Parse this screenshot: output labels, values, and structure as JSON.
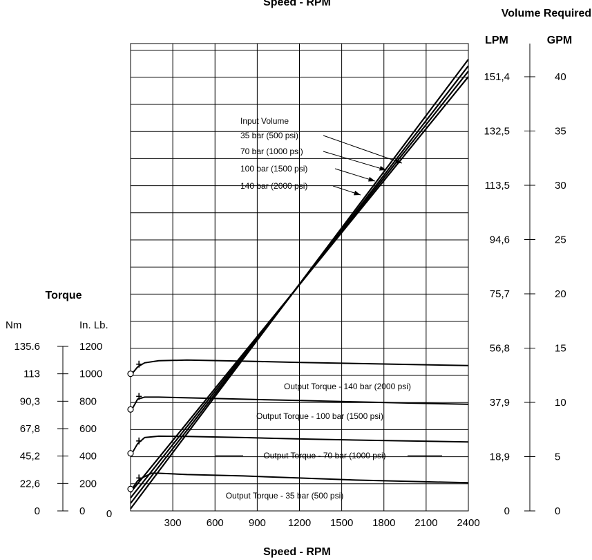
{
  "chart_data": {
    "type": "line",
    "title": "Speed - RPM",
    "xlabel": "Speed - RPM",
    "xlim": [
      0,
      2400
    ],
    "x_ticks": [
      "300",
      "600",
      "900",
      "1200",
      "1500",
      "1800",
      "2100",
      "2400"
    ],
    "x_zero_label": "0",
    "left_axis": {
      "title": "Torque",
      "nm_label": "Nm",
      "inlb_label": "In. Lb.",
      "nm_ticks": [
        "0",
        "22,6",
        "45,2",
        "67,8",
        "90,3",
        "113",
        "135.6"
      ],
      "inlb_ticks": [
        "0",
        "200",
        "400",
        "600",
        "800",
        "1000",
        "1200"
      ],
      "ylim_inlb": [
        0,
        1200
      ]
    },
    "right_axis": {
      "title": "Volume Required",
      "lpm_label": "LPM",
      "gpm_label": "GPM",
      "lpm_ticks": [
        "0",
        "18,9",
        "37,9",
        "56,8",
        "75,7",
        "94,6",
        "113,5",
        "132,5",
        "151,4"
      ],
      "gpm_ticks": [
        "0",
        "5",
        "10",
        "15",
        "20",
        "25",
        "30",
        "35",
        "40"
      ],
      "ylim_gpm": [
        0,
        40
      ]
    },
    "volume_series_title": "Input Volume",
    "volume_series": [
      {
        "name": "35 bar (500 psi)",
        "x": [
          0,
          2400
        ],
        "y_gpm": [
          0.2,
          41.6
        ]
      },
      {
        "name": "70 bar (1000 psi)",
        "x": [
          0,
          2400
        ],
        "y_gpm": [
          0.7,
          41.0
        ]
      },
      {
        "name": "100 bar (1500 psi)",
        "x": [
          0,
          2400
        ],
        "y_gpm": [
          1.2,
          40.5
        ]
      },
      {
        "name": "140 bar (2000 psi)",
        "x": [
          0,
          2400
        ],
        "y_gpm": [
          1.7,
          40.0
        ]
      }
    ],
    "torque_series": [
      {
        "name": "Output Torque - 140 bar (2000 psi)",
        "start_inlb": 1000,
        "x": [
          50,
          100,
          200,
          400,
          800,
          1200,
          1600,
          2000,
          2400
        ],
        "y_inlb": [
          1050,
          1080,
          1095,
          1100,
          1092,
          1083,
          1075,
          1068,
          1060
        ]
      },
      {
        "name": "Output Torque - 100 bar (1500 psi)",
        "start_inlb": 740,
        "x": [
          50,
          100,
          200,
          400,
          800,
          1200,
          1600,
          2000,
          2400
        ],
        "y_inlb": [
          815,
          830,
          830,
          825,
          815,
          805,
          795,
          786,
          778
        ]
      },
      {
        "name": "Output Torque - 70 bar (1000 psi)",
        "start_inlb": 420,
        "x": [
          50,
          100,
          200,
          400,
          800,
          1200,
          1600,
          2000,
          2400
        ],
        "y_inlb": [
          490,
          535,
          545,
          543,
          535,
          525,
          517,
          510,
          503
        ]
      },
      {
        "name": "Output Torque - 35 bar (500 psi)",
        "start_inlb": 160,
        "x": [
          50,
          100,
          150,
          200,
          400,
          800,
          1200,
          1600,
          2000,
          2400
        ],
        "y_inlb": [
          220,
          250,
          275,
          275,
          265,
          255,
          240,
          225,
          215,
          205
        ]
      }
    ],
    "grid": true
  }
}
